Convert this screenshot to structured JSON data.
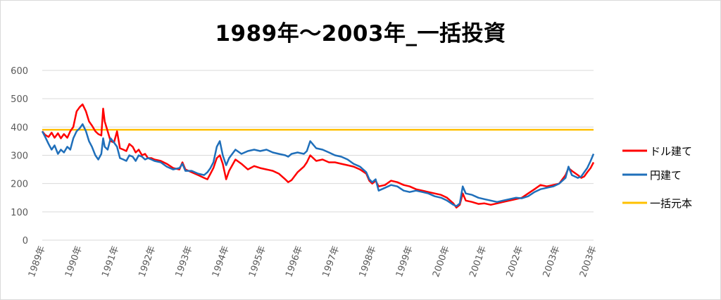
{
  "chart_data": {
    "type": "line",
    "title": "1989年～2003年_一括投資",
    "xlabel": "",
    "ylabel": "",
    "ylim": [
      0,
      600
    ],
    "y_ticks": [
      0,
      100,
      200,
      300,
      400,
      500,
      600
    ],
    "x_tick_labels": [
      "1989年",
      "1990年",
      "1991年",
      "1992年",
      "1993年",
      "1994年",
      "1995年",
      "1996年",
      "1997年",
      "1998年",
      "1999年",
      "2000年",
      "2001年",
      "2002年",
      "2003年",
      "2003年"
    ],
    "x_range": [
      1989.0,
      2003.75
    ],
    "grid": true,
    "legend_position": "right",
    "series": [
      {
        "name": "ドル建て",
        "color": "#ff0000",
        "points": [
          [
            1989.0,
            385
          ],
          [
            1989.08,
            372
          ],
          [
            1989.17,
            365
          ],
          [
            1989.25,
            380
          ],
          [
            1989.33,
            362
          ],
          [
            1989.42,
            378
          ],
          [
            1989.5,
            360
          ],
          [
            1989.58,
            375
          ],
          [
            1989.67,
            362
          ],
          [
            1989.75,
            385
          ],
          [
            1989.83,
            400
          ],
          [
            1989.92,
            455
          ],
          [
            1990.0,
            470
          ],
          [
            1990.08,
            480
          ],
          [
            1990.17,
            455
          ],
          [
            1990.25,
            420
          ],
          [
            1990.33,
            405
          ],
          [
            1990.42,
            385
          ],
          [
            1990.5,
            375
          ],
          [
            1990.58,
            370
          ],
          [
            1990.63,
            465
          ],
          [
            1990.67,
            420
          ],
          [
            1990.75,
            385
          ],
          [
            1990.83,
            350
          ],
          [
            1990.92,
            345
          ],
          [
            1991.0,
            385
          ],
          [
            1991.08,
            325
          ],
          [
            1991.17,
            320
          ],
          [
            1991.25,
            315
          ],
          [
            1991.33,
            340
          ],
          [
            1991.42,
            330
          ],
          [
            1991.5,
            310
          ],
          [
            1991.58,
            320
          ],
          [
            1991.67,
            300
          ],
          [
            1991.75,
            305
          ],
          [
            1991.83,
            290
          ],
          [
            1991.92,
            290
          ],
          [
            1992.0,
            285
          ],
          [
            1992.17,
            280
          ],
          [
            1992.33,
            270
          ],
          [
            1992.5,
            255
          ],
          [
            1992.67,
            250
          ],
          [
            1992.75,
            275
          ],
          [
            1992.83,
            250
          ],
          [
            1993.0,
            240
          ],
          [
            1993.17,
            230
          ],
          [
            1993.33,
            220
          ],
          [
            1993.42,
            215
          ],
          [
            1993.5,
            235
          ],
          [
            1993.58,
            255
          ],
          [
            1993.67,
            290
          ],
          [
            1993.75,
            300
          ],
          [
            1993.83,
            270
          ],
          [
            1993.92,
            215
          ],
          [
            1994.0,
            245
          ],
          [
            1994.17,
            285
          ],
          [
            1994.33,
            270
          ],
          [
            1994.5,
            250
          ],
          [
            1994.67,
            262
          ],
          [
            1994.83,
            255
          ],
          [
            1995.0,
            250
          ],
          [
            1995.17,
            245
          ],
          [
            1995.33,
            235
          ],
          [
            1995.5,
            215
          ],
          [
            1995.58,
            205
          ],
          [
            1995.67,
            212
          ],
          [
            1995.83,
            240
          ],
          [
            1996.0,
            260
          ],
          [
            1996.08,
            275
          ],
          [
            1996.17,
            300
          ],
          [
            1996.33,
            280
          ],
          [
            1996.5,
            285
          ],
          [
            1996.67,
            275
          ],
          [
            1996.83,
            275
          ],
          [
            1997.0,
            270
          ],
          [
            1997.17,
            265
          ],
          [
            1997.33,
            260
          ],
          [
            1997.5,
            250
          ],
          [
            1997.67,
            235
          ],
          [
            1997.75,
            210
          ],
          [
            1997.83,
            200
          ],
          [
            1997.92,
            210
          ],
          [
            1998.0,
            190
          ],
          [
            1998.17,
            195
          ],
          [
            1998.33,
            210
          ],
          [
            1998.5,
            205
          ],
          [
            1998.67,
            195
          ],
          [
            1998.83,
            190
          ],
          [
            1999.0,
            180
          ],
          [
            1999.17,
            175
          ],
          [
            1999.33,
            170
          ],
          [
            1999.5,
            165
          ],
          [
            1999.67,
            160
          ],
          [
            1999.83,
            150
          ],
          [
            2000.0,
            130
          ],
          [
            2000.08,
            115
          ],
          [
            2000.17,
            125
          ],
          [
            2000.25,
            165
          ],
          [
            2000.33,
            140
          ],
          [
            2000.5,
            135
          ],
          [
            2000.67,
            128
          ],
          [
            2000.83,
            130
          ],
          [
            2001.0,
            125
          ],
          [
            2001.17,
            130
          ],
          [
            2001.33,
            135
          ],
          [
            2001.5,
            140
          ],
          [
            2001.67,
            145
          ],
          [
            2001.83,
            150
          ],
          [
            2002.0,
            165
          ],
          [
            2002.17,
            180
          ],
          [
            2002.33,
            195
          ],
          [
            2002.5,
            190
          ],
          [
            2002.67,
            195
          ],
          [
            2002.83,
            200
          ],
          [
            2003.0,
            230
          ],
          [
            2003.08,
            255
          ],
          [
            2003.17,
            245
          ],
          [
            2003.33,
            230
          ],
          [
            2003.42,
            220
          ],
          [
            2003.5,
            225
          ],
          [
            2003.58,
            240
          ],
          [
            2003.67,
            255
          ],
          [
            2003.75,
            275
          ]
        ]
      },
      {
        "name": "円建て",
        "color": "#1f6fba",
        "points": [
          [
            1989.0,
            385
          ],
          [
            1989.08,
            365
          ],
          [
            1989.17,
            340
          ],
          [
            1989.25,
            320
          ],
          [
            1989.33,
            335
          ],
          [
            1989.42,
            305
          ],
          [
            1989.5,
            320
          ],
          [
            1989.58,
            310
          ],
          [
            1989.67,
            330
          ],
          [
            1989.75,
            320
          ],
          [
            1989.83,
            360
          ],
          [
            1989.92,
            385
          ],
          [
            1990.0,
            395
          ],
          [
            1990.08,
            410
          ],
          [
            1990.17,
            385
          ],
          [
            1990.25,
            350
          ],
          [
            1990.33,
            330
          ],
          [
            1990.42,
            300
          ],
          [
            1990.5,
            285
          ],
          [
            1990.58,
            305
          ],
          [
            1990.63,
            360
          ],
          [
            1990.67,
            330
          ],
          [
            1990.75,
            320
          ],
          [
            1990.83,
            360
          ],
          [
            1990.92,
            345
          ],
          [
            1991.0,
            330
          ],
          [
            1991.08,
            290
          ],
          [
            1991.17,
            285
          ],
          [
            1991.25,
            280
          ],
          [
            1991.33,
            300
          ],
          [
            1991.42,
            295
          ],
          [
            1991.5,
            280
          ],
          [
            1991.58,
            300
          ],
          [
            1991.67,
            295
          ],
          [
            1991.75,
            285
          ],
          [
            1991.83,
            290
          ],
          [
            1991.92,
            285
          ],
          [
            1992.0,
            280
          ],
          [
            1992.17,
            275
          ],
          [
            1992.33,
            260
          ],
          [
            1992.5,
            250
          ],
          [
            1992.67,
            255
          ],
          [
            1992.75,
            270
          ],
          [
            1992.83,
            245
          ],
          [
            1993.0,
            245
          ],
          [
            1993.17,
            235
          ],
          [
            1993.33,
            230
          ],
          [
            1993.42,
            240
          ],
          [
            1993.5,
            255
          ],
          [
            1993.58,
            275
          ],
          [
            1993.67,
            330
          ],
          [
            1993.75,
            350
          ],
          [
            1993.83,
            300
          ],
          [
            1993.92,
            265
          ],
          [
            1994.0,
            290
          ],
          [
            1994.17,
            320
          ],
          [
            1994.33,
            305
          ],
          [
            1994.5,
            315
          ],
          [
            1994.67,
            320
          ],
          [
            1994.83,
            315
          ],
          [
            1995.0,
            320
          ],
          [
            1995.17,
            310
          ],
          [
            1995.33,
            305
          ],
          [
            1995.5,
            300
          ],
          [
            1995.58,
            295
          ],
          [
            1995.67,
            305
          ],
          [
            1995.83,
            310
          ],
          [
            1996.0,
            305
          ],
          [
            1996.08,
            315
          ],
          [
            1996.17,
            350
          ],
          [
            1996.33,
            325
          ],
          [
            1996.5,
            320
          ],
          [
            1996.67,
            310
          ],
          [
            1996.83,
            300
          ],
          [
            1997.0,
            295
          ],
          [
            1997.17,
            285
          ],
          [
            1997.33,
            270
          ],
          [
            1997.5,
            260
          ],
          [
            1997.67,
            240
          ],
          [
            1997.75,
            215
          ],
          [
            1997.83,
            205
          ],
          [
            1997.92,
            215
          ],
          [
            1998.0,
            175
          ],
          [
            1998.17,
            185
          ],
          [
            1998.33,
            195
          ],
          [
            1998.5,
            190
          ],
          [
            1998.67,
            175
          ],
          [
            1998.83,
            170
          ],
          [
            1999.0,
            175
          ],
          [
            1999.17,
            170
          ],
          [
            1999.33,
            165
          ],
          [
            1999.5,
            155
          ],
          [
            1999.67,
            150
          ],
          [
            1999.83,
            140
          ],
          [
            2000.0,
            125
          ],
          [
            2000.08,
            120
          ],
          [
            2000.17,
            130
          ],
          [
            2000.25,
            190
          ],
          [
            2000.33,
            165
          ],
          [
            2000.5,
            160
          ],
          [
            2000.67,
            150
          ],
          [
            2000.83,
            145
          ],
          [
            2001.0,
            140
          ],
          [
            2001.17,
            135
          ],
          [
            2001.33,
            140
          ],
          [
            2001.5,
            145
          ],
          [
            2001.67,
            150
          ],
          [
            2001.83,
            148
          ],
          [
            2002.0,
            155
          ],
          [
            2002.17,
            170
          ],
          [
            2002.33,
            180
          ],
          [
            2002.5,
            185
          ],
          [
            2002.67,
            190
          ],
          [
            2002.83,
            200
          ],
          [
            2003.0,
            220
          ],
          [
            2003.08,
            260
          ],
          [
            2003.17,
            230
          ],
          [
            2003.33,
            220
          ],
          [
            2003.42,
            225
          ],
          [
            2003.5,
            240
          ],
          [
            2003.58,
            255
          ],
          [
            2003.67,
            280
          ],
          [
            2003.75,
            305
          ]
        ]
      },
      {
        "name": "一括元本",
        "color": "#ffc000",
        "points": [
          [
            1989.0,
            390
          ],
          [
            2003.75,
            390
          ]
        ]
      }
    ]
  }
}
